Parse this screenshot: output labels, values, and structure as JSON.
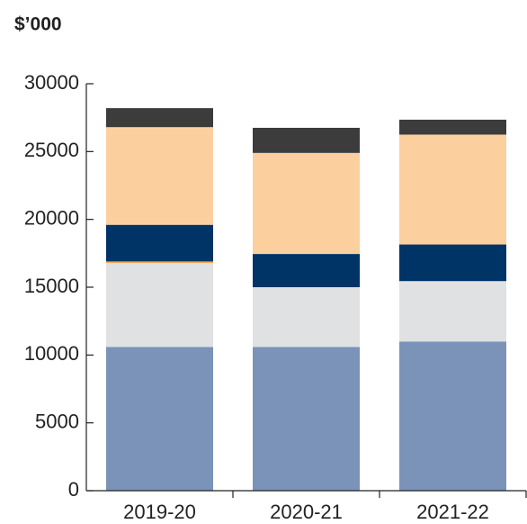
{
  "chart_data": {
    "type": "stacked_bar",
    "title": "$’000",
    "categories": [
      "2019-20",
      "2020-21",
      "2021-22"
    ],
    "series": [
      {
        "color": "#7b93b8",
        "values": [
          10600,
          10600,
          11000
        ]
      },
      {
        "color": "#e0e1e3",
        "values": [
          6200,
          4400,
          4450
        ]
      },
      {
        "color": "#f39c3c",
        "values": [
          100,
          0,
          0
        ]
      },
      {
        "color": "#003366",
        "values": [
          2700,
          2450,
          2700
        ]
      },
      {
        "color": "#fccf9f",
        "values": [
          7200,
          7450,
          8100
        ]
      },
      {
        "color": "#3c3c3c",
        "values": [
          1400,
          1850,
          1100
        ]
      }
    ],
    "ylim": [
      0,
      30000
    ],
    "yticks": [
      0,
      5000,
      10000,
      15000,
      20000,
      25000,
      30000
    ]
  }
}
